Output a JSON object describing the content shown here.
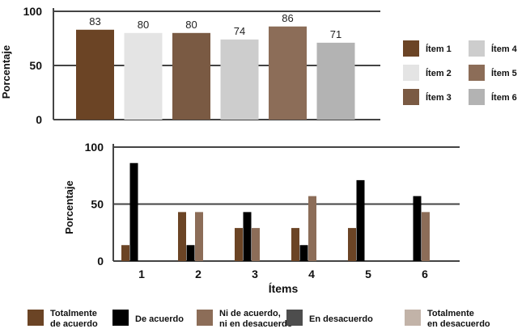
{
  "colors": {
    "axis": "#444444",
    "grid": "#444444"
  },
  "chart_data": [
    {
      "type": "bar",
      "ylabel": "Porcentaje",
      "ylim": [
        0,
        100
      ],
      "yticks": [
        0,
        50,
        100
      ],
      "grid": true,
      "legend_position": "right",
      "categories": [
        "Ítem 1",
        "Ítem 2",
        "Ítem 3",
        "Ítem 4",
        "Ítem 5",
        "Ítem 6"
      ],
      "values": [
        83,
        80,
        80,
        74,
        86,
        71
      ],
      "data_labels": [
        "83",
        "80",
        "80",
        "74",
        "86",
        "71"
      ],
      "colors": [
        "#6b4425",
        "#e4e4e4",
        "#7a5a43",
        "#cdcdcd",
        "#8c6d58",
        "#b3b3b3"
      ],
      "legend": [
        {
          "label": "Ítem 1",
          "color": "#6b4425"
        },
        {
          "label": "Ítem 4",
          "color": "#cdcdcd"
        },
        {
          "label": "Ítem 2",
          "color": "#e4e4e4"
        },
        {
          "label": "Ítem 5",
          "color": "#8c6d58"
        },
        {
          "label": "Ítem 3",
          "color": "#7a5a43"
        },
        {
          "label": "Ítem 6",
          "color": "#b3b3b3"
        }
      ]
    },
    {
      "type": "bar",
      "xlabel": "Ítems",
      "ylabel": "Porcentaje",
      "ylim": [
        0,
        100
      ],
      "yticks": [
        0,
        50,
        100
      ],
      "grid": true,
      "legend_position": "bottom",
      "categories": [
        "1",
        "2",
        "3",
        "4",
        "5",
        "6"
      ],
      "series": [
        {
          "name": "Totalmente de acuerdo",
          "legend_lines": [
            "Totalmente",
            "de acuerdo"
          ],
          "color": "#6b4425",
          "values": [
            14,
            43,
            29,
            29,
            29,
            0
          ]
        },
        {
          "name": "De acuerdo",
          "legend_lines": [
            "De acuerdo"
          ],
          "color": "#000000",
          "values": [
            86,
            14,
            43,
            14,
            71,
            57
          ]
        },
        {
          "name": "Ni de acuerdo, ni en desacuerdo",
          "legend_lines": [
            "Ni de acuerdo,",
            "ni en desacuerdo"
          ],
          "color": "#8c6d58",
          "values": [
            0,
            43,
            29,
            57,
            0,
            43
          ]
        },
        {
          "name": "En desacuerdo",
          "legend_lines": [
            "En desacuerdo"
          ],
          "color": "#4d4d4d",
          "values": [
            0,
            0,
            0,
            0,
            0,
            0
          ]
        },
        {
          "name": "Totalmente en desacuerdo",
          "legend_lines": [
            "Totalmente",
            "en desacuerdo"
          ],
          "color": "#c2b3a8",
          "values": [
            0,
            0,
            0,
            0,
            0,
            0
          ]
        }
      ]
    }
  ]
}
